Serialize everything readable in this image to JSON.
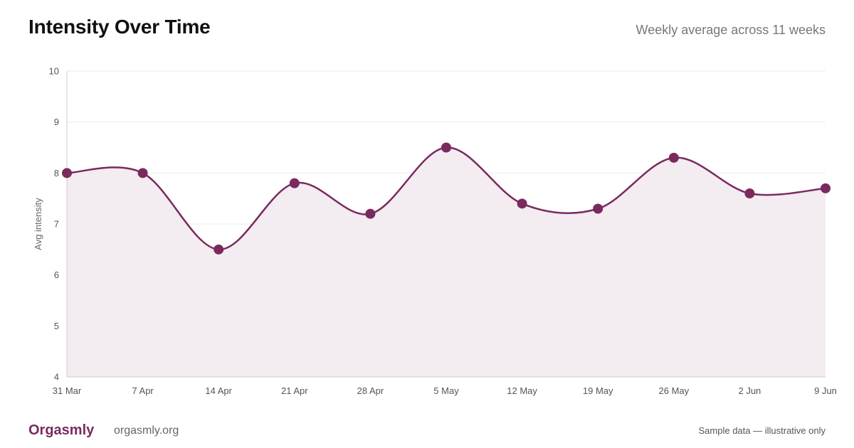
{
  "header": {
    "title": "Intensity Over Time",
    "subtitle": "Weekly average across 11 weeks"
  },
  "footer": {
    "brand": "Orgasmly",
    "site": "orgasmly.org",
    "note": "Sample data — illustrative only"
  },
  "colors": {
    "accent": "#7a2a5e",
    "area_fill": "#f3ecf1",
    "grid": "#ebebeb",
    "axis": "#cccccc"
  },
  "chart_data": {
    "type": "line",
    "title": "Intensity Over Time",
    "subtitle": "Weekly average across 11 weeks",
    "xlabel": "",
    "ylabel": "Avg intensity",
    "categories": [
      "31 Mar",
      "7 Apr",
      "14 Apr",
      "21 Apr",
      "28 Apr",
      "5 May",
      "12 May",
      "19 May",
      "26 May",
      "2 Jun",
      "9 Jun"
    ],
    "series": [
      {
        "values": [
          8.0,
          8.0,
          6.5,
          7.8,
          7.2,
          8.5,
          7.4,
          7.3,
          8.3,
          7.6,
          7.7
        ]
      }
    ],
    "ylim": [
      4,
      10
    ],
    "yticks": [
      "4",
      "5",
      "6",
      "7",
      "8",
      "9",
      "10"
    ],
    "grid": true,
    "area_fill": true,
    "smooth": true,
    "markers": true,
    "legend": "none"
  }
}
